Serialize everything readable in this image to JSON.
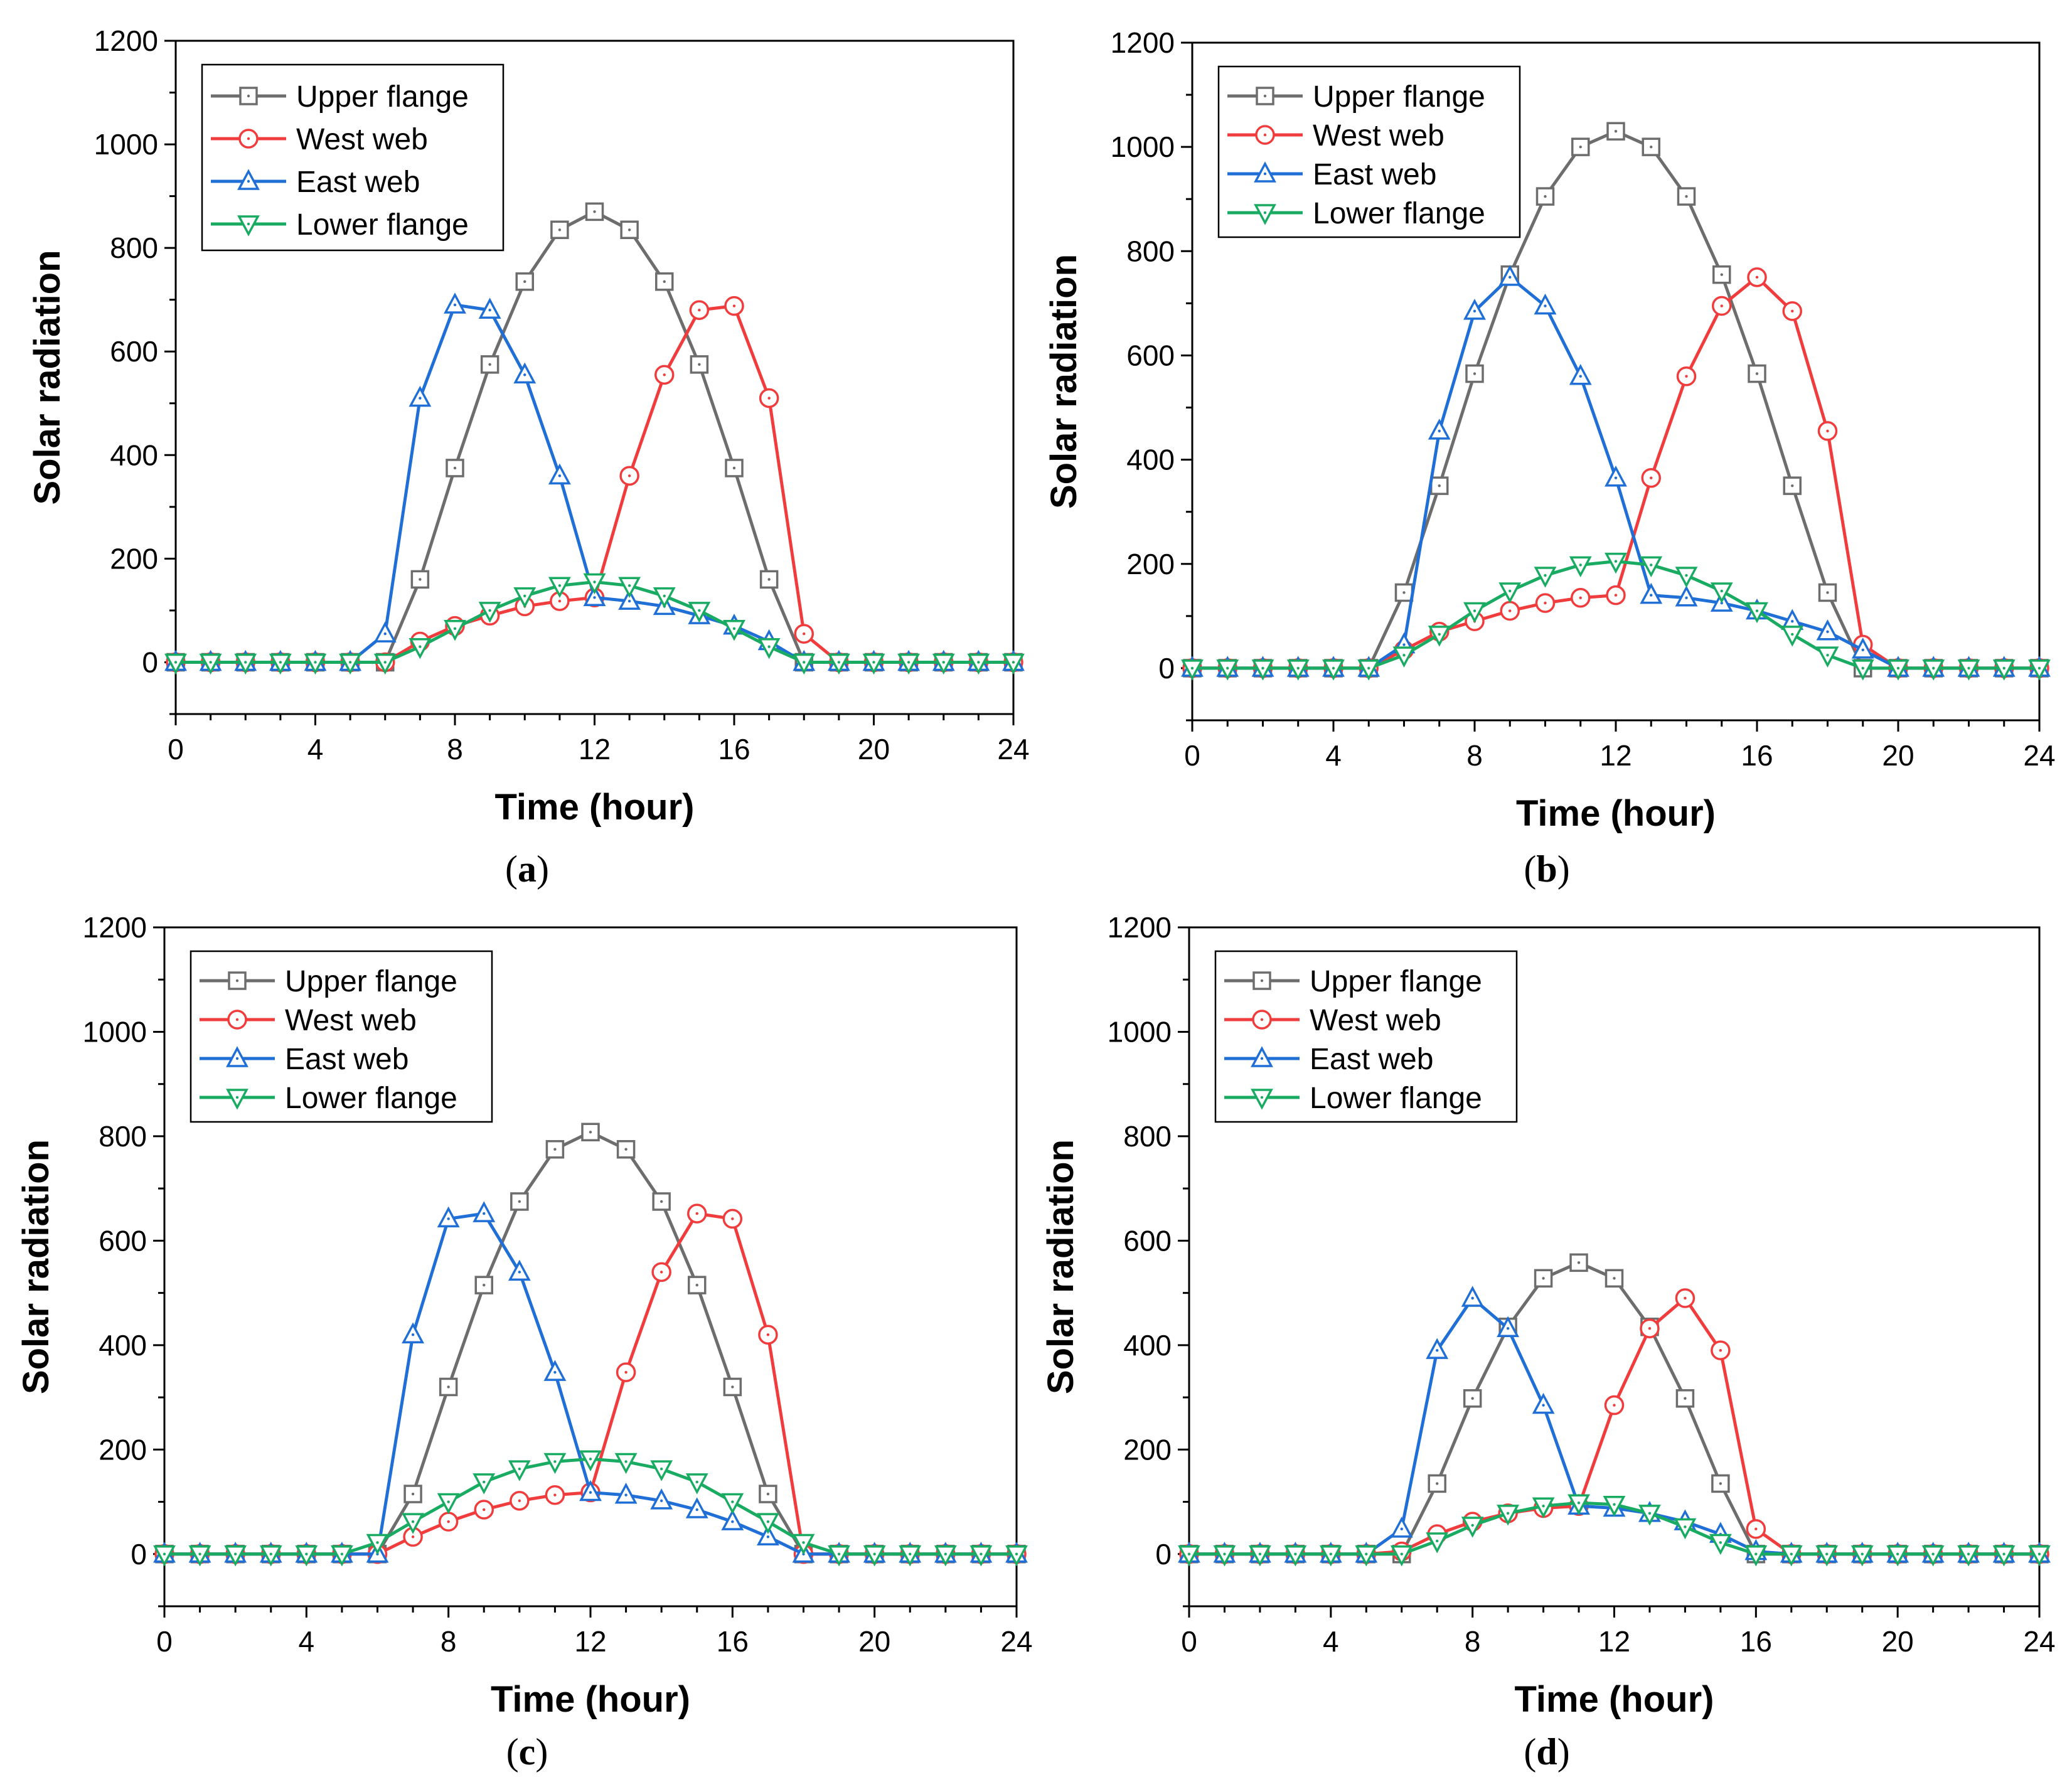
{
  "figure": {
    "legend": [
      "Upper flange",
      "West web",
      "East web",
      "Lower flange"
    ]
  },
  "chart_data": [
    {
      "type": "line",
      "caption": "(a)",
      "caption_letter": "a",
      "xlabel": "Time (hour)",
      "ylabel": "Solar radiation",
      "xlim": [
        0,
        24
      ],
      "ylim": [
        -100,
        1200
      ],
      "xticks": [
        0,
        4,
        8,
        12,
        16,
        20,
        24
      ],
      "yticks": [
        0,
        200,
        400,
        600,
        800,
        1000,
        1200
      ],
      "legend_position": "top-left",
      "x": [
        0,
        1,
        2,
        3,
        4,
        5,
        6,
        7,
        8,
        9,
        10,
        11,
        12,
        13,
        14,
        15,
        16,
        17,
        18,
        19,
        20,
        21,
        22,
        23,
        24
      ],
      "series": [
        {
          "name": "Upper flange",
          "color": "#6d6d6d",
          "marker": "square",
          "values": [
            0,
            0,
            0,
            0,
            0,
            0,
            0,
            160,
            375,
            575,
            735,
            835,
            870,
            835,
            735,
            575,
            375,
            160,
            0,
            0,
            0,
            0,
            0,
            0,
            0
          ]
        },
        {
          "name": "West web",
          "color": "#f03c3c",
          "marker": "circle",
          "values": [
            0,
            0,
            0,
            0,
            0,
            0,
            0,
            40,
            70,
            90,
            108,
            118,
            125,
            360,
            555,
            680,
            688,
            510,
            55,
            0,
            0,
            0,
            0,
            0,
            0
          ]
        },
        {
          "name": "East web",
          "color": "#1f6fd6",
          "marker": "triangle-up",
          "values": [
            0,
            0,
            0,
            0,
            0,
            0,
            55,
            510,
            690,
            680,
            555,
            360,
            125,
            118,
            108,
            90,
            70,
            40,
            0,
            0,
            0,
            0,
            0,
            0,
            0
          ]
        },
        {
          "name": "Lower flange",
          "color": "#1aab63",
          "marker": "triangle-down",
          "values": [
            0,
            0,
            0,
            0,
            0,
            0,
            0,
            30,
            65,
            100,
            128,
            148,
            155,
            148,
            128,
            100,
            65,
            30,
            0,
            0,
            0,
            0,
            0,
            0,
            0
          ]
        }
      ]
    },
    {
      "type": "line",
      "caption": "(b)",
      "caption_letter": "b",
      "xlabel": "Time (hour)",
      "ylabel": "Solar radiation",
      "xlim": [
        0,
        24
      ],
      "ylim": [
        -100,
        1200
      ],
      "xticks": [
        0,
        4,
        8,
        12,
        16,
        20,
        24
      ],
      "yticks": [
        0,
        200,
        400,
        600,
        800,
        1000,
        1200
      ],
      "legend_position": "top-left",
      "x": [
        0,
        1,
        2,
        3,
        4,
        5,
        6,
        7,
        8,
        9,
        10,
        11,
        12,
        13,
        14,
        15,
        16,
        17,
        18,
        19,
        20,
        21,
        22,
        23,
        24
      ],
      "series": [
        {
          "name": "Upper flange",
          "color": "#6d6d6d",
          "marker": "square",
          "values": [
            0,
            0,
            0,
            0,
            0,
            0,
            145,
            350,
            565,
            755,
            905,
            1000,
            1030,
            1000,
            905,
            755,
            565,
            350,
            145,
            0,
            0,
            0,
            0,
            0,
            0
          ]
        },
        {
          "name": "West web",
          "color": "#f03c3c",
          "marker": "circle",
          "values": [
            0,
            0,
            0,
            0,
            0,
            0,
            35,
            70,
            90,
            110,
            125,
            135,
            140,
            365,
            560,
            695,
            750,
            685,
            455,
            45,
            0,
            0,
            0,
            0,
            0
          ]
        },
        {
          "name": "East web",
          "color": "#1f6fd6",
          "marker": "triangle-up",
          "values": [
            0,
            0,
            0,
            0,
            0,
            0,
            45,
            455,
            685,
            750,
            695,
            560,
            365,
            140,
            135,
            125,
            110,
            90,
            70,
            35,
            0,
            0,
            0,
            0,
            0
          ]
        },
        {
          "name": "Lower flange",
          "color": "#1aab63",
          "marker": "triangle-down",
          "values": [
            0,
            0,
            0,
            0,
            0,
            0,
            25,
            65,
            110,
            148,
            178,
            198,
            205,
            198,
            178,
            148,
            110,
            65,
            25,
            0,
            0,
            0,
            0,
            0,
            0
          ]
        }
      ]
    },
    {
      "type": "line",
      "caption": "(c)",
      "caption_letter": "c",
      "xlabel": "Time (hour)",
      "ylabel": "Solar radiation",
      "xlim": [
        0,
        24
      ],
      "ylim": [
        -100,
        1200
      ],
      "xticks": [
        0,
        4,
        8,
        12,
        16,
        20,
        24
      ],
      "yticks": [
        0,
        200,
        400,
        600,
        800,
        1000,
        1200
      ],
      "legend_position": "top-left",
      "x": [
        0,
        1,
        2,
        3,
        4,
        5,
        6,
        7,
        8,
        9,
        10,
        11,
        12,
        13,
        14,
        15,
        16,
        17,
        18,
        19,
        20,
        21,
        22,
        23,
        24
      ],
      "series": [
        {
          "name": "Upper flange",
          "color": "#6d6d6d",
          "marker": "square",
          "values": [
            0,
            0,
            0,
            0,
            0,
            0,
            0,
            115,
            320,
            515,
            675,
            775,
            808,
            775,
            675,
            515,
            320,
            115,
            0,
            0,
            0,
            0,
            0,
            0,
            0
          ]
        },
        {
          "name": "West web",
          "color": "#f03c3c",
          "marker": "circle",
          "values": [
            0,
            0,
            0,
            0,
            0,
            0,
            0,
            33,
            62,
            85,
            102,
            113,
            118,
            348,
            540,
            652,
            642,
            420,
            0,
            0,
            0,
            0,
            0,
            0,
            0
          ]
        },
        {
          "name": "East web",
          "color": "#1f6fd6",
          "marker": "triangle-up",
          "values": [
            0,
            0,
            0,
            0,
            0,
            0,
            0,
            420,
            642,
            652,
            540,
            348,
            118,
            113,
            102,
            85,
            62,
            33,
            0,
            0,
            0,
            0,
            0,
            0,
            0
          ]
        },
        {
          "name": "Lower flange",
          "color": "#1aab63",
          "marker": "triangle-down",
          "values": [
            0,
            0,
            0,
            0,
            0,
            0,
            22,
            62,
            100,
            138,
            163,
            177,
            182,
            177,
            163,
            138,
            100,
            62,
            22,
            0,
            0,
            0,
            0,
            0,
            0
          ]
        }
      ]
    },
    {
      "type": "line",
      "caption": "(d)",
      "caption_letter": "d",
      "xlabel": "Time (hour)",
      "ylabel": "Solar radiation",
      "xlim": [
        0,
        24
      ],
      "ylim": [
        -100,
        1200
      ],
      "xticks": [
        0,
        4,
        8,
        12,
        16,
        20,
        24
      ],
      "yticks": [
        0,
        200,
        400,
        600,
        800,
        1000,
        1200
      ],
      "legend_position": "top-left",
      "x": [
        0,
        1,
        2,
        3,
        4,
        5,
        6,
        7,
        8,
        9,
        10,
        11,
        12,
        13,
        14,
        15,
        16,
        17,
        18,
        19,
        20,
        21,
        22,
        23,
        24
      ],
      "series": [
        {
          "name": "Upper flange",
          "color": "#6d6d6d",
          "marker": "square",
          "values": [
            0,
            0,
            0,
            0,
            0,
            0,
            0,
            135,
            298,
            435,
            528,
            558,
            528,
            435,
            298,
            135,
            0,
            0,
            0,
            0,
            0,
            0,
            0,
            0,
            0
          ]
        },
        {
          "name": "West web",
          "color": "#f03c3c",
          "marker": "circle",
          "values": [
            0,
            0,
            0,
            0,
            0,
            0,
            5,
            38,
            62,
            78,
            88,
            92,
            285,
            432,
            490,
            390,
            48,
            0,
            0,
            0,
            0,
            0,
            0,
            0,
            0
          ]
        },
        {
          "name": "East web",
          "color": "#1f6fd6",
          "marker": "triangle-up",
          "values": [
            0,
            0,
            0,
            0,
            0,
            0,
            48,
            390,
            490,
            432,
            285,
            92,
            88,
            78,
            62,
            38,
            5,
            0,
            0,
            0,
            0,
            0,
            0,
            0,
            0
          ]
        },
        {
          "name": "Lower flange",
          "color": "#1aab63",
          "marker": "triangle-down",
          "values": [
            0,
            0,
            0,
            0,
            0,
            0,
            0,
            25,
            55,
            78,
            92,
            98,
            95,
            78,
            52,
            22,
            0,
            0,
            0,
            0,
            0,
            0,
            0,
            0,
            0
          ]
        }
      ]
    }
  ]
}
